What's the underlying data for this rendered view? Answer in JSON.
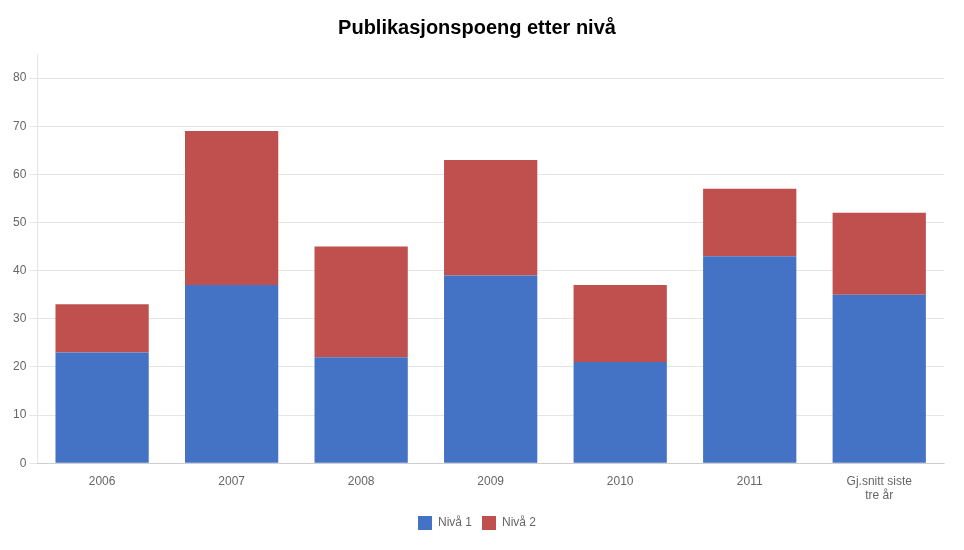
{
  "chart_data": {
    "type": "bar",
    "title": "Publikasjonspoeng etter nivå",
    "categories": [
      "2006",
      "2007",
      "2008",
      "2009",
      "2010",
      "2011",
      "Gj.snitt siste\ntre år"
    ],
    "series": [
      {
        "name": "Nivå 1",
        "color": "#4472C4",
        "values": [
          23,
          37,
          22,
          39,
          21,
          43,
          35
        ]
      },
      {
        "name": "Nivå 2",
        "color": "#C0504D",
        "values": [
          10,
          32,
          23,
          24,
          16,
          14,
          17
        ]
      }
    ],
    "stacked": true,
    "ylim": [
      0,
      85
    ],
    "yticks": [
      0,
      10,
      20,
      30,
      40,
      50,
      60,
      70,
      80
    ],
    "grid": true,
    "legend": "bottom"
  }
}
